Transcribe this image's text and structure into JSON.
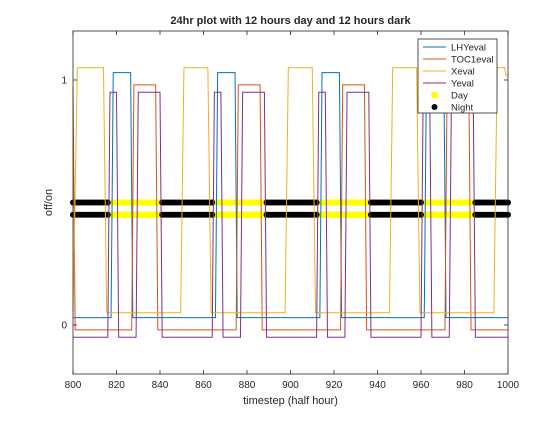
{
  "chart_data": {
    "type": "line",
    "title": "24hr plot with 12 hours day and 12 hours dark",
    "xlabel": "timestep (half hour)",
    "ylabel": "off/on",
    "xlim": [
      800,
      1000
    ],
    "ylim": [
      -0.2,
      1.2
    ],
    "x_ticks": [
      800,
      820,
      840,
      860,
      880,
      900,
      920,
      940,
      960,
      980,
      1000
    ],
    "y_ticks": [
      0,
      1
    ],
    "grid": false,
    "legend_position": "top-right",
    "series": [
      {
        "name": "LHYeval",
        "color": "#0072BD",
        "points": [
          [
            800,
            0.03
          ],
          [
            817.5,
            0.03
          ],
          [
            818.5,
            1.03
          ],
          [
            826.5,
            1.03
          ],
          [
            827.5,
            0.03
          ],
          [
            865.5,
            0.03
          ],
          [
            866.5,
            1.03
          ],
          [
            874.5,
            1.03
          ],
          [
            875.5,
            0.03
          ],
          [
            913.5,
            0.03
          ],
          [
            914.5,
            1.03
          ],
          [
            922.5,
            1.03
          ],
          [
            923.5,
            0.03
          ],
          [
            961.5,
            0.03
          ],
          [
            962.5,
            1.03
          ],
          [
            970.5,
            1.03
          ],
          [
            971.5,
            0.03
          ],
          [
            1000,
            0.03
          ]
        ]
      },
      {
        "name": "TOC1eval",
        "color": "#D95319",
        "points": [
          [
            800,
            0.97
          ],
          [
            801,
            -0.02
          ],
          [
            827,
            -0.02
          ],
          [
            828,
            0.98
          ],
          [
            838,
            0.98
          ],
          [
            839,
            -0.02
          ],
          [
            875,
            -0.02
          ],
          [
            876,
            0.98
          ],
          [
            886,
            0.98
          ],
          [
            887,
            -0.02
          ],
          [
            923,
            -0.02
          ],
          [
            924,
            0.98
          ],
          [
            934,
            0.98
          ],
          [
            935,
            -0.02
          ],
          [
            971,
            -0.02
          ],
          [
            972,
            0.98
          ],
          [
            982,
            0.98
          ],
          [
            983,
            -0.02
          ],
          [
            1000,
            -0.02
          ]
        ]
      },
      {
        "name": "Xeval",
        "color": "#EDB120",
        "points": [
          [
            800,
            0.05
          ],
          [
            802,
            1.05
          ],
          [
            814,
            1.05
          ],
          [
            815.5,
            0.05
          ],
          [
            849.5,
            0.05
          ],
          [
            851,
            1.05
          ],
          [
            862,
            1.05
          ],
          [
            863.5,
            0.05
          ],
          [
            897.5,
            0.05
          ],
          [
            899,
            1.05
          ],
          [
            910,
            1.05
          ],
          [
            911.5,
            0.05
          ],
          [
            945.5,
            0.05
          ],
          [
            947,
            1.05
          ],
          [
            958,
            1.05
          ],
          [
            959.5,
            0.05
          ],
          [
            993.5,
            0.05
          ],
          [
            995,
            1.05
          ],
          [
            998.5,
            1.05
          ],
          [
            999,
            1.02
          ],
          [
            1000,
            1.02
          ]
        ]
      },
      {
        "name": "Yeval",
        "color": "#7E2F8E",
        "points": [
          [
            800,
            -0.05
          ],
          [
            816,
            -0.05
          ],
          [
            817,
            0.95
          ],
          [
            820,
            0.95
          ],
          [
            821,
            -0.05
          ],
          [
            829,
            -0.05
          ],
          [
            830,
            0.95
          ],
          [
            840,
            0.95
          ],
          [
            841,
            -0.05
          ],
          [
            864,
            -0.05
          ],
          [
            865,
            0.95
          ],
          [
            868,
            0.95
          ],
          [
            869,
            -0.05
          ],
          [
            877,
            -0.05
          ],
          [
            878,
            0.95
          ],
          [
            888,
            0.95
          ],
          [
            889,
            -0.05
          ],
          [
            912,
            -0.05
          ],
          [
            913,
            0.95
          ],
          [
            916,
            0.95
          ],
          [
            917,
            -0.05
          ],
          [
            925,
            -0.05
          ],
          [
            926,
            0.95
          ],
          [
            936,
            0.95
          ],
          [
            937,
            -0.05
          ],
          [
            960,
            -0.05
          ],
          [
            961,
            0.95
          ],
          [
            964,
            0.95
          ],
          [
            965,
            -0.05
          ],
          [
            973,
            -0.05
          ],
          [
            974,
            0.95
          ],
          [
            984,
            0.95
          ],
          [
            985,
            -0.05
          ],
          [
            1000,
            -0.05
          ]
        ]
      },
      {
        "name": "Day",
        "marker_color": "#FFFF00",
        "marker": "square",
        "ranges": [
          [
            817,
            840
          ],
          [
            865,
            888
          ],
          [
            913,
            936
          ],
          [
            961,
            984
          ]
        ],
        "y_levels": [
          0.45,
          0.5
        ]
      },
      {
        "name": "Night",
        "marker_color": "#000000",
        "marker": "circle",
        "ranges": [
          [
            800,
            816
          ],
          [
            841,
            864
          ],
          [
            889,
            912
          ],
          [
            937,
            960
          ],
          [
            985,
            1000
          ]
        ],
        "y_levels": [
          0.45,
          0.5
        ]
      }
    ]
  }
}
